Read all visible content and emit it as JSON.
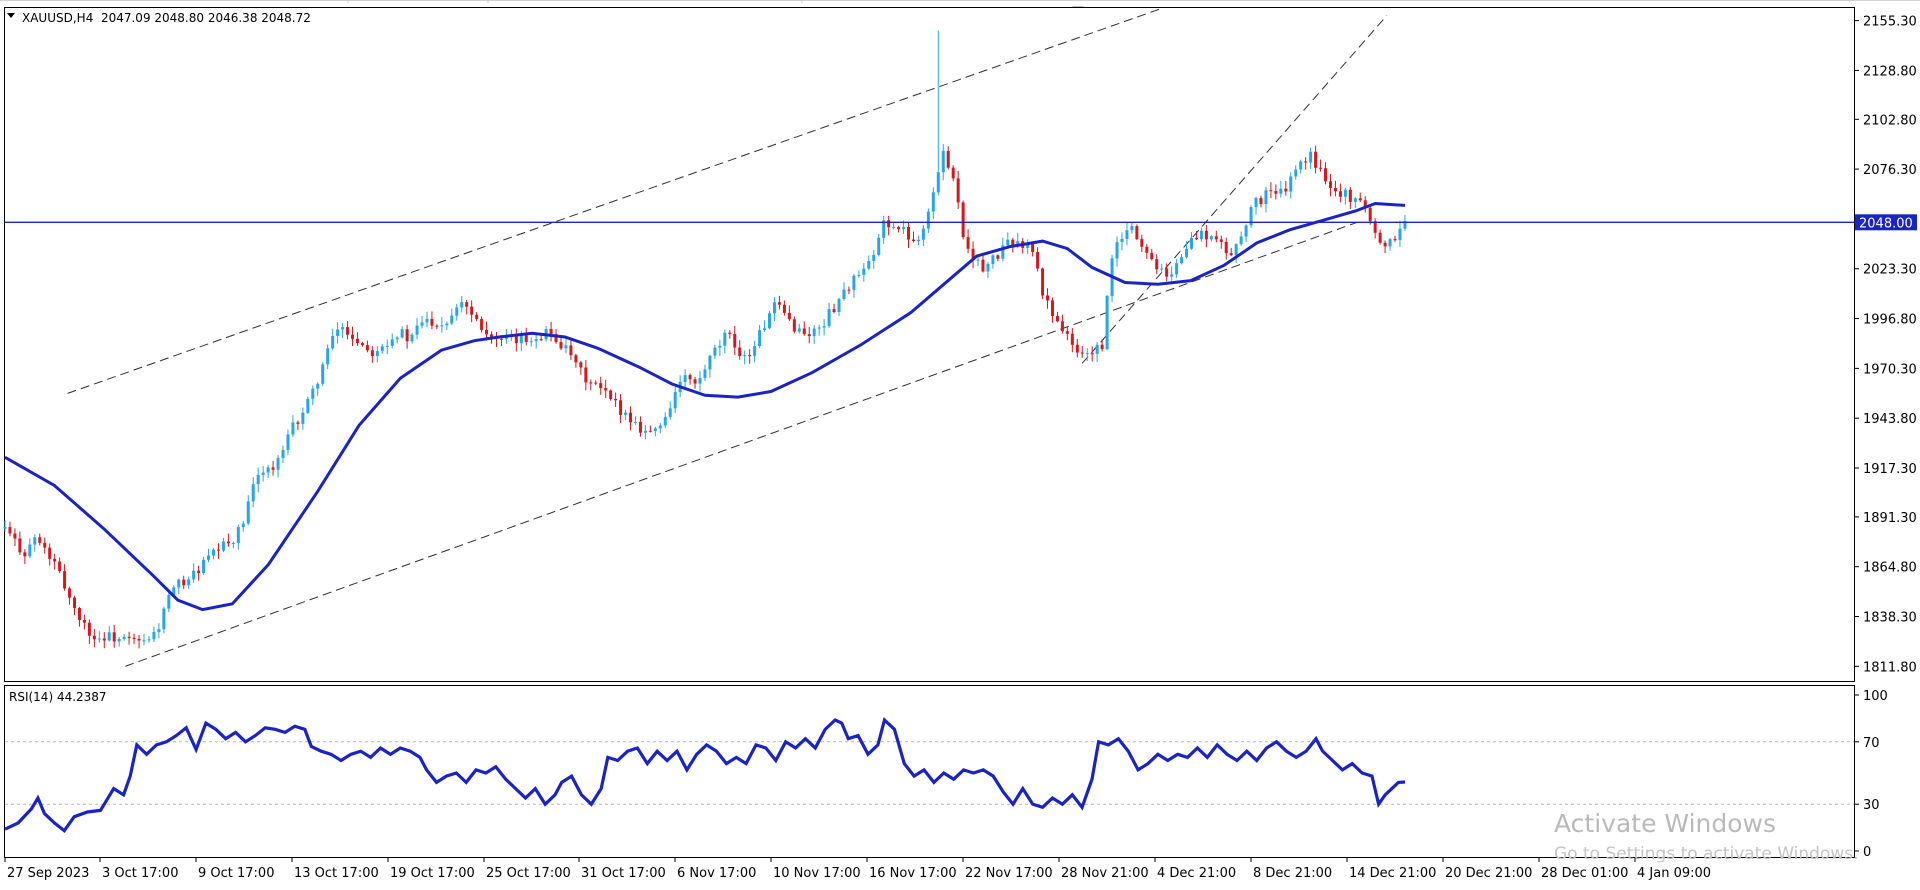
{
  "header": {
    "symbol_line": "XAUUSD,H4  2047.09 2048.80 2046.38 2048.72"
  },
  "watermark": {
    "title": "Activate Windows",
    "subtitle": "Go to Settings to activate Windows."
  },
  "colors": {
    "bull": "#26a6ea",
    "bear": "#d4181b",
    "ma": "#1a23c4",
    "hline": "#1a23c4",
    "rsi": "#1a23c4",
    "channel": "#303030",
    "price_tag_bg": "#1a23c4"
  },
  "chart_data": [
    {
      "type": "candlestick",
      "symbol": "XAUUSD",
      "timeframe": "H4",
      "ohlc_header": {
        "open": 2047.09,
        "high": 2048.8,
        "low": 2046.38,
        "close": 2048.72
      },
      "y_ticks": [
        "2155.30",
        "2128.80",
        "2102.80",
        "2076.30",
        "2048.00",
        "2023.30",
        "1996.80",
        "1970.30",
        "1943.80",
        "1917.30",
        "1891.30",
        "1864.80",
        "1838.30",
        "1811.80"
      ],
      "ylim": [
        1804,
        2162
      ],
      "x_ticks": [
        "27 Sep 2023",
        "3 Oct 17:00",
        "9 Oct 17:00",
        "13 Oct 17:00",
        "19 Oct 17:00",
        "25 Oct 17:00",
        "31 Oct 17:00",
        "6 Nov 17:00",
        "10 Nov 17:00",
        "16 Nov 17:00",
        "22 Nov 17:00",
        "28 Nov 21:00",
        "4 Dec 21:00",
        "8 Dec 21:00",
        "14 Dec 21:00",
        "20 Dec 21:00",
        "28 Dec 01:00",
        "4 Jan 09:00"
      ],
      "horizontal_line": {
        "price": 2048.0,
        "label": "2048.00"
      },
      "price_path": [
        [
          0,
          1885
        ],
        [
          6,
          1878
        ],
        [
          12,
          1872
        ],
        [
          18,
          1880
        ],
        [
          24,
          1874
        ],
        [
          30,
          1866
        ],
        [
          36,
          1855
        ],
        [
          42,
          1843
        ],
        [
          48,
          1834
        ],
        [
          55,
          1826
        ],
        [
          62,
          1828
        ],
        [
          70,
          1826
        ],
        [
          78,
          1825
        ],
        [
          86,
          1824
        ],
        [
          93,
          1832
        ],
        [
          99,
          1848
        ],
        [
          106,
          1856
        ],
        [
          114,
          1860
        ],
        [
          122,
          1868
        ],
        [
          130,
          1874
        ],
        [
          138,
          1879
        ],
        [
          144,
          1886
        ],
        [
          150,
          1905
        ],
        [
          156,
          1918
        ],
        [
          162,
          1916
        ],
        [
          168,
          1924
        ],
        [
          174,
          1938
        ],
        [
          180,
          1946
        ],
        [
          186,
          1955
        ],
        [
          192,
          1970
        ],
        [
          198,
          1984
        ],
        [
          203,
          1993
        ],
        [
          210,
          1988
        ],
        [
          216,
          1984
        ],
        [
          222,
          1979
        ],
        [
          228,
          1983
        ],
        [
          234,
          1986
        ],
        [
          240,
          1990
        ],
        [
          246,
          1984
        ],
        [
          252,
          1995
        ],
        [
          258,
          1996
        ],
        [
          264,
          1994
        ],
        [
          270,
          1997
        ],
        [
          276,
          2008
        ],
        [
          282,
          2002
        ],
        [
          288,
          1995
        ],
        [
          294,
          1988
        ],
        [
          300,
          1984
        ],
        [
          306,
          1985
        ],
        [
          312,
          1985
        ],
        [
          318,
          1986
        ],
        [
          324,
          1988
        ],
        [
          330,
          1990
        ],
        [
          336,
          1985
        ],
        [
          342,
          1978
        ],
        [
          348,
          1970
        ],
        [
          354,
          1963
        ],
        [
          360,
          1960
        ],
        [
          366,
          1955
        ],
        [
          372,
          1950
        ],
        [
          378,
          1945
        ],
        [
          384,
          1940
        ],
        [
          390,
          1937
        ],
        [
          396,
          1937
        ],
        [
          402,
          1947
        ],
        [
          408,
          1960
        ],
        [
          414,
          1966
        ],
        [
          420,
          1960
        ],
        [
          426,
          1972
        ],
        [
          432,
          1980
        ],
        [
          438,
          1988
        ],
        [
          444,
          1982
        ],
        [
          450,
          1975
        ],
        [
          456,
          1985
        ],
        [
          462,
          1995
        ],
        [
          468,
          2004
        ],
        [
          474,
          1998
        ],
        [
          480,
          1992
        ],
        [
          486,
          1988
        ],
        [
          492,
          1990
        ],
        [
          498,
          1996
        ],
        [
          504,
          2004
        ],
        [
          510,
          2012
        ],
        [
          516,
          2018
        ],
        [
          522,
          2022
        ],
        [
          528,
          2030
        ],
        [
          534,
          2050
        ],
        [
          540,
          2045
        ],
        [
          546,
          2043
        ],
        [
          552,
          2038
        ],
        [
          558,
          2046
        ],
        [
          564,
          2065
        ],
        [
          570,
          2085
        ],
        [
          576,
          2073
        ],
        [
          582,
          2040
        ],
        [
          588,
          2030
        ],
        [
          594,
          2022
        ],
        [
          600,
          2028
        ],
        [
          606,
          2034
        ],
        [
          612,
          2038
        ],
        [
          618,
          2036
        ],
        [
          624,
          2033
        ],
        [
          630,
          2010
        ],
        [
          636,
          2000
        ],
        [
          642,
          1992
        ],
        [
          648,
          1982
        ],
        [
          654,
          1977
        ],
        [
          660,
          1980
        ],
        [
          666,
          1980
        ],
        [
          672,
          2030
        ],
        [
          678,
          2040
        ],
        [
          684,
          2045
        ],
        [
          690,
          2036
        ],
        [
          696,
          2028
        ],
        [
          702,
          2024
        ],
        [
          708,
          2020
        ],
        [
          714,
          2030
        ],
        [
          720,
          2038
        ],
        [
          726,
          2042
        ],
        [
          732,
          2040
        ],
        [
          738,
          2036
        ],
        [
          744,
          2030
        ],
        [
          750,
          2040
        ],
        [
          756,
          2055
        ],
        [
          762,
          2060
        ],
        [
          768,
          2066
        ],
        [
          774,
          2062
        ],
        [
          780,
          2070
        ],
        [
          786,
          2078
        ],
        [
          792,
          2084
        ],
        [
          798,
          2076
        ],
        [
          804,
          2070
        ],
        [
          810,
          2064
        ],
        [
          816,
          2062
        ],
        [
          822,
          2060
        ],
        [
          828,
          2052
        ],
        [
          834,
          2038
        ],
        [
          840,
          2036
        ],
        [
          846,
          2044
        ],
        [
          850,
          2048.72
        ]
      ],
      "moving_average": [
        [
          0,
          1923
        ],
        [
          30,
          1908
        ],
        [
          60,
          1885
        ],
        [
          90,
          1860
        ],
        [
          105,
          1847
        ],
        [
          120,
          1842
        ],
        [
          138,
          1845
        ],
        [
          160,
          1866
        ],
        [
          190,
          1905
        ],
        [
          215,
          1940
        ],
        [
          240,
          1965
        ],
        [
          265,
          1980
        ],
        [
          285,
          1985
        ],
        [
          300,
          1987
        ],
        [
          320,
          1989
        ],
        [
          340,
          1987
        ],
        [
          360,
          1981
        ],
        [
          385,
          1971
        ],
        [
          405,
          1962
        ],
        [
          425,
          1956
        ],
        [
          445,
          1955
        ],
        [
          465,
          1958
        ],
        [
          490,
          1968
        ],
        [
          520,
          1983
        ],
        [
          550,
          2000
        ],
        [
          570,
          2015
        ],
        [
          590,
          2030
        ],
        [
          610,
          2035
        ],
        [
          630,
          2038
        ],
        [
          645,
          2034
        ],
        [
          660,
          2024
        ],
        [
          680,
          2016
        ],
        [
          700,
          2015
        ],
        [
          720,
          2017
        ],
        [
          740,
          2025
        ],
        [
          760,
          2037
        ],
        [
          780,
          2044
        ],
        [
          800,
          2049
        ],
        [
          820,
          2054
        ],
        [
          832,
          2058
        ],
        [
          850,
          2057
        ]
      ],
      "channel_lines": [
        {
          "from": [
            38,
            1957
          ],
          "to": [
            703,
            2162
          ]
        },
        {
          "from": [
            73,
            1811.8
          ],
          "to": [
            821,
            2048
          ]
        },
        {
          "from": [
            654,
            1973
          ],
          "to": [
            839,
            2158
          ]
        }
      ]
    },
    {
      "type": "line",
      "indicator": "RSI(14)",
      "label": "RSI(14) 44.2387",
      "ylim": [
        0,
        100
      ],
      "y_ticks": [
        "100",
        "70",
        "30",
        "0"
      ],
      "levels": [
        70,
        30
      ],
      "series": [
        [
          0,
          14
        ],
        [
          8,
          18
        ],
        [
          16,
          27
        ],
        [
          20,
          34
        ],
        [
          24,
          24
        ],
        [
          30,
          18
        ],
        [
          36,
          13
        ],
        [
          42,
          22
        ],
        [
          50,
          25
        ],
        [
          58,
          26
        ],
        [
          66,
          40
        ],
        [
          72,
          36
        ],
        [
          76,
          48
        ],
        [
          80,
          68
        ],
        [
          86,
          62
        ],
        [
          92,
          68
        ],
        [
          98,
          70
        ],
        [
          104,
          74
        ],
        [
          110,
          79
        ],
        [
          116,
          65
        ],
        [
          122,
          82
        ],
        [
          128,
          78
        ],
        [
          134,
          72
        ],
        [
          140,
          76
        ],
        [
          146,
          70
        ],
        [
          152,
          74
        ],
        [
          158,
          79
        ],
        [
          164,
          78
        ],
        [
          170,
          76
        ],
        [
          176,
          80
        ],
        [
          182,
          78
        ],
        [
          186,
          67
        ],
        [
          192,
          64
        ],
        [
          198,
          62
        ],
        [
          204,
          58
        ],
        [
          210,
          62
        ],
        [
          216,
          64
        ],
        [
          222,
          60
        ],
        [
          228,
          66
        ],
        [
          234,
          62
        ],
        [
          240,
          66
        ],
        [
          246,
          64
        ],
        [
          252,
          60
        ],
        [
          256,
          52
        ],
        [
          262,
          44
        ],
        [
          268,
          48
        ],
        [
          274,
          50
        ],
        [
          280,
          44
        ],
        [
          286,
          52
        ],
        [
          292,
          50
        ],
        [
          298,
          54
        ],
        [
          304,
          46
        ],
        [
          310,
          40
        ],
        [
          316,
          34
        ],
        [
          322,
          40
        ],
        [
          328,
          30
        ],
        [
          334,
          36
        ],
        [
          338,
          44
        ],
        [
          344,
          48
        ],
        [
          350,
          36
        ],
        [
          356,
          30
        ],
        [
          362,
          40
        ],
        [
          366,
          60
        ],
        [
          372,
          58
        ],
        [
          378,
          64
        ],
        [
          384,
          66
        ],
        [
          390,
          56
        ],
        [
          396,
          64
        ],
        [
          402,
          58
        ],
        [
          408,
          64
        ],
        [
          414,
          52
        ],
        [
          420,
          62
        ],
        [
          426,
          68
        ],
        [
          432,
          64
        ],
        [
          438,
          56
        ],
        [
          444,
          60
        ],
        [
          450,
          56
        ],
        [
          456,
          68
        ],
        [
          462,
          66
        ],
        [
          468,
          58
        ],
        [
          474,
          70
        ],
        [
          480,
          66
        ],
        [
          486,
          72
        ],
        [
          492,
          66
        ],
        [
          498,
          78
        ],
        [
          504,
          84
        ],
        [
          508,
          82
        ],
        [
          512,
          72
        ],
        [
          518,
          74
        ],
        [
          524,
          62
        ],
        [
          530,
          68
        ],
        [
          534,
          84
        ],
        [
          540,
          78
        ],
        [
          546,
          56
        ],
        [
          552,
          48
        ],
        [
          558,
          52
        ],
        [
          564,
          44
        ],
        [
          570,
          50
        ],
        [
          576,
          46
        ],
        [
          582,
          52
        ],
        [
          588,
          50
        ],
        [
          594,
          52
        ],
        [
          600,
          48
        ],
        [
          606,
          38
        ],
        [
          612,
          30
        ],
        [
          618,
          40
        ],
        [
          624,
          30
        ],
        [
          630,
          28
        ],
        [
          636,
          34
        ],
        [
          642,
          30
        ],
        [
          648,
          36
        ],
        [
          654,
          28
        ],
        [
          660,
          46
        ],
        [
          664,
          70
        ],
        [
          670,
          68
        ],
        [
          676,
          72
        ],
        [
          682,
          64
        ],
        [
          688,
          52
        ],
        [
          694,
          56
        ],
        [
          700,
          62
        ],
        [
          706,
          58
        ],
        [
          712,
          62
        ],
        [
          718,
          60
        ],
        [
          724,
          66
        ],
        [
          730,
          60
        ],
        [
          736,
          68
        ],
        [
          742,
          62
        ],
        [
          748,
          58
        ],
        [
          754,
          64
        ],
        [
          760,
          58
        ],
        [
          766,
          66
        ],
        [
          772,
          70
        ],
        [
          778,
          64
        ],
        [
          784,
          60
        ],
        [
          790,
          64
        ],
        [
          796,
          72
        ],
        [
          800,
          64
        ],
        [
          806,
          58
        ],
        [
          812,
          52
        ],
        [
          818,
          56
        ],
        [
          824,
          50
        ],
        [
          830,
          48
        ],
        [
          834,
          30
        ],
        [
          838,
          36
        ],
        [
          846,
          44
        ],
        [
          850,
          44.24
        ]
      ]
    }
  ]
}
